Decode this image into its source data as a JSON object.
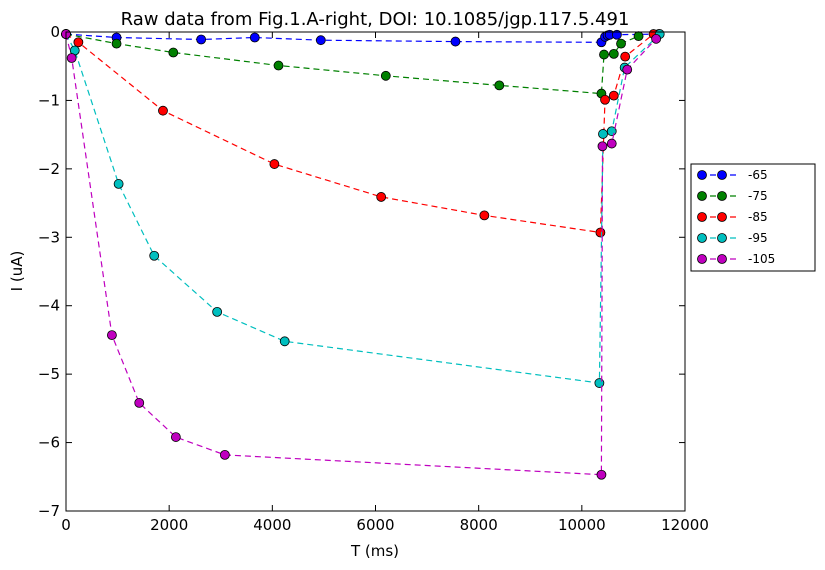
{
  "chart_data": {
    "type": "line",
    "title": "Raw data from Fig.1.A-right, DOI: 10.1085/jgp.117.5.491",
    "xlabel": "T (ms)",
    "ylabel": "I (uA)",
    "xlim": [
      0,
      12000
    ],
    "ylim": [
      -7,
      0
    ],
    "xticks": [
      0,
      2000,
      4000,
      6000,
      8000,
      10000,
      12000
    ],
    "yticks": [
      0,
      -1,
      -2,
      -3,
      -4,
      -5,
      -6,
      -7
    ],
    "xtick_labels": [
      "0",
      "2000",
      "4000",
      "6000",
      "8000",
      "10000",
      "12000"
    ],
    "ytick_labels": [
      "0",
      "−1",
      "−2",
      "−3",
      "−4",
      "−5",
      "−6",
      "−7"
    ],
    "grid": false,
    "legend_position": "outside-right",
    "line_style": "dashed",
    "marker": "circle",
    "series": [
      {
        "name": "-65",
        "color": "#0000ff",
        "x": [
          0,
          980,
          2620,
          3660,
          4940,
          7550,
          10380,
          10450,
          10500,
          10540,
          10680,
          11490
        ],
        "y": [
          -0.03,
          -0.08,
          -0.11,
          -0.08,
          -0.12,
          -0.14,
          -0.15,
          -0.07,
          -0.05,
          -0.04,
          -0.04,
          -0.03
        ]
      },
      {
        "name": "-75",
        "color": "#008000",
        "x": [
          0,
          980,
          2080,
          4120,
          6200,
          8400,
          10380,
          10430,
          10620,
          10760,
          11100
        ],
        "y": [
          -0.03,
          -0.17,
          -0.3,
          -0.49,
          -0.64,
          -0.78,
          -0.9,
          -0.33,
          -0.32,
          -0.17,
          -0.06
        ]
      },
      {
        "name": "-85",
        "color": "#ff0000",
        "x": [
          0,
          240,
          1880,
          4040,
          6110,
          8110,
          10360,
          10450,
          10620,
          10840,
          11390
        ],
        "y": [
          -0.03,
          -0.15,
          -1.15,
          -1.93,
          -2.41,
          -2.68,
          -2.93,
          -0.99,
          -0.93,
          -0.36,
          -0.03
        ]
      },
      {
        "name": "-95",
        "color": "#00bfbf",
        "x": [
          0,
          170,
          1020,
          1710,
          2930,
          4240,
          10340,
          10410,
          10580,
          10830,
          11510
        ],
        "y": [
          -0.03,
          -0.27,
          -2.22,
          -3.27,
          -4.09,
          -4.52,
          -5.13,
          -1.49,
          -1.45,
          -0.52,
          -0.03
        ]
      },
      {
        "name": "-105",
        "color": "#bf00bf",
        "x": [
          0,
          110,
          890,
          1420,
          2130,
          3080,
          10380,
          10400,
          10580,
          10880,
          11440
        ],
        "y": [
          -0.03,
          -0.38,
          -4.43,
          -5.42,
          -5.92,
          -6.18,
          -6.47,
          -1.67,
          -1.63,
          -0.55,
          -0.1
        ]
      }
    ]
  }
}
